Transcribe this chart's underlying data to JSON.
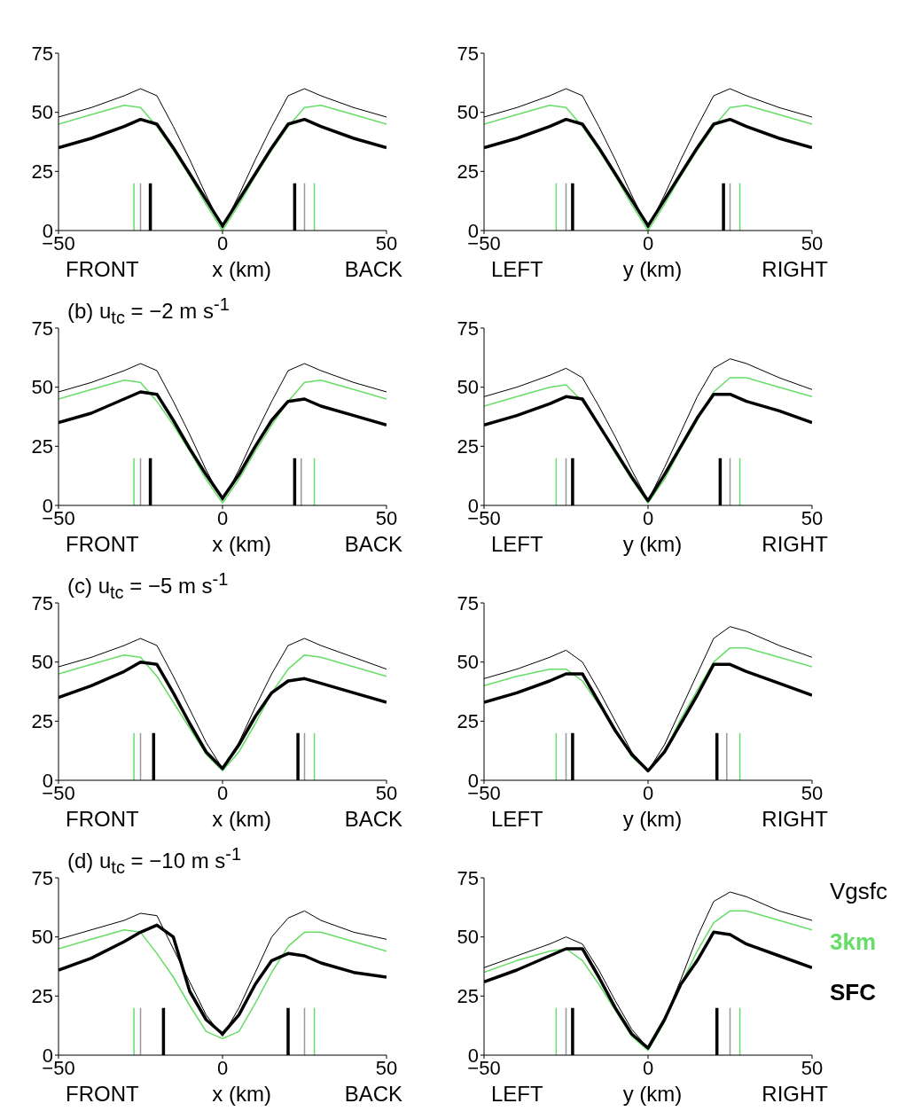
{
  "chart_data": [
    {
      "type": "line",
      "xlabel": "x (km)",
      "annotations": [
        "FRONT",
        "BACK"
      ],
      "x": [
        -50,
        -40,
        -30,
        -25,
        -20,
        -15,
        -10,
        -5,
        0,
        5,
        10,
        15,
        20,
        25,
        30,
        40,
        50
      ],
      "xlim": [
        -50,
        50
      ],
      "xticks": [
        -50,
        0,
        50
      ],
      "ylim": [
        0,
        75
      ],
      "yticks": [
        0,
        25,
        50,
        75
      ],
      "series": [
        {
          "color": "#000000",
          "values": [
            48,
            52,
            57,
            60,
            57,
            44,
            30,
            15,
            1,
            15,
            30,
            44,
            57,
            60,
            57,
            52,
            48
          ]
        },
        {
          "color": "#66dd66",
          "values": [
            45,
            49,
            53,
            52,
            44,
            34,
            23,
            11,
            0,
            11,
            23,
            34,
            44,
            52,
            53,
            49,
            45
          ]
        },
        {
          "color": "#000000",
          "values": [
            35,
            39,
            44,
            47,
            45,
            35,
            24,
            13,
            2,
            13,
            24,
            35,
            45,
            47,
            44,
            39,
            35
          ]
        },
        {
          "color": "#66dd66",
          "x": [
            -27,
            -27,
            null,
            28,
            28
          ],
          "values": [
            0,
            20,
            null,
            20,
            0
          ]
        },
        {
          "color": "#999999",
          "x": [
            -25,
            -25,
            null,
            25,
            25
          ],
          "values": [
            0,
            20,
            null,
            20,
            0
          ]
        },
        {
          "color": "#000000",
          "x": [
            -22,
            -22,
            null,
            22,
            22
          ],
          "values": [
            0,
            20,
            null,
            20,
            0
          ]
        }
      ]
    },
    {
      "type": "line",
      "xlabel": "y (km)",
      "annotations": [
        "LEFT",
        "RIGHT"
      ],
      "x": [
        -50,
        -40,
        -30,
        -25,
        -20,
        -15,
        -10,
        -5,
        0,
        5,
        10,
        15,
        20,
        25,
        30,
        40,
        50
      ],
      "xlim": [
        -50,
        50
      ],
      "xticks": [
        -50,
        0,
        50
      ],
      "ylim": [
        0,
        75
      ],
      "yticks": [
        0,
        25,
        50,
        75
      ],
      "series": [
        {
          "color": "#000000",
          "values": [
            48,
            52,
            57,
            60,
            57,
            44,
            30,
            15,
            1,
            15,
            30,
            44,
            57,
            60,
            57,
            52,
            48
          ]
        },
        {
          "color": "#66dd66",
          "values": [
            45,
            49,
            53,
            52,
            44,
            34,
            23,
            11,
            0,
            11,
            23,
            34,
            44,
            52,
            53,
            49,
            45
          ]
        },
        {
          "color": "#000000",
          "values": [
            35,
            39,
            44,
            47,
            45,
            35,
            24,
            13,
            2,
            13,
            24,
            35,
            45,
            47,
            44,
            39,
            35
          ]
        },
        {
          "color": "#66dd66",
          "x": [
            -28,
            -28,
            null,
            28,
            28
          ],
          "values": [
            0,
            20,
            null,
            20,
            0
          ]
        },
        {
          "color": "#999999",
          "x": [
            -25,
            -25,
            null,
            25,
            25
          ],
          "values": [
            0,
            20,
            null,
            20,
            0
          ]
        },
        {
          "color": "#000000",
          "x": [
            -23,
            -23,
            null,
            23,
            23
          ],
          "values": [
            0,
            20,
            null,
            20,
            0
          ]
        }
      ]
    },
    {
      "type": "line",
      "title": "(b) u$_{tc}$ = −2 m s$^{-1}$",
      "xlabel": "x (km)",
      "annotations": [
        "FRONT",
        "BACK"
      ],
      "x": [
        -50,
        -40,
        -30,
        -25,
        -20,
        -15,
        -10,
        -5,
        0,
        5,
        10,
        15,
        20,
        25,
        30,
        40,
        50
      ],
      "xlim": [
        -50,
        50
      ],
      "xticks": [
        -50,
        0,
        50
      ],
      "ylim": [
        0,
        75
      ],
      "yticks": [
        0,
        25,
        50,
        75
      ],
      "series": [
        {
          "color": "#000000",
          "values": [
            48,
            52,
            57,
            60,
            57,
            44,
            30,
            15,
            2,
            15,
            30,
            44,
            57,
            60,
            57,
            52,
            48
          ]
        },
        {
          "color": "#66dd66",
          "values": [
            45,
            49,
            53,
            52,
            44,
            34,
            23,
            11,
            1,
            11,
            23,
            34,
            44,
            52,
            53,
            49,
            45
          ]
        },
        {
          "color": "#000000",
          "values": [
            35,
            39,
            45,
            48,
            47,
            36,
            24,
            13,
            3,
            13,
            25,
            36,
            44,
            45,
            42,
            38,
            34
          ]
        },
        {
          "color": "#66dd66",
          "x": [
            -27,
            -27,
            null,
            28,
            28
          ],
          "values": [
            0,
            20,
            null,
            20,
            0
          ]
        },
        {
          "color": "#999999",
          "x": [
            -25,
            -25,
            null,
            24,
            24
          ],
          "values": [
            0,
            20,
            null,
            20,
            0
          ]
        },
        {
          "color": "#000000",
          "x": [
            -22,
            -22,
            null,
            22,
            22
          ],
          "values": [
            0,
            20,
            null,
            20,
            0
          ]
        }
      ]
    },
    {
      "type": "line",
      "xlabel": "y (km)",
      "annotations": [
        "LEFT",
        "RIGHT"
      ],
      "x": [
        -50,
        -40,
        -30,
        -25,
        -20,
        -15,
        -10,
        -5,
        0,
        5,
        10,
        15,
        20,
        25,
        30,
        40,
        50
      ],
      "xlim": [
        -50,
        50
      ],
      "xticks": [
        -50,
        0,
        50
      ],
      "ylim": [
        0,
        75
      ],
      "yticks": [
        0,
        25,
        50,
        75
      ],
      "series": [
        {
          "color": "#000000",
          "values": [
            46,
            50,
            55,
            58,
            54,
            42,
            29,
            15,
            2,
            16,
            31,
            46,
            58,
            62,
            60,
            54,
            49
          ]
        },
        {
          "color": "#66dd66",
          "values": [
            42,
            46,
            50,
            51,
            44,
            34,
            22,
            11,
            1,
            11,
            24,
            36,
            48,
            54,
            54,
            50,
            46
          ]
        },
        {
          "color": "#000000",
          "values": [
            34,
            38,
            43,
            46,
            45,
            34,
            23,
            12,
            2,
            13,
            25,
            37,
            47,
            47,
            44,
            40,
            35
          ]
        },
        {
          "color": "#66dd66",
          "x": [
            -28,
            -28,
            null,
            28,
            28
          ],
          "values": [
            0,
            20,
            null,
            20,
            0
          ]
        },
        {
          "color": "#999999",
          "x": [
            -25,
            -25,
            null,
            25,
            25
          ],
          "values": [
            0,
            20,
            null,
            20,
            0
          ]
        },
        {
          "color": "#000000",
          "x": [
            -23,
            -23,
            null,
            22,
            22
          ],
          "values": [
            0,
            20,
            null,
            20,
            0
          ]
        }
      ]
    },
    {
      "type": "line",
      "title": "(c) u$_{tc}$ = −5 m s$^{-1}$",
      "xlabel": "x (km)",
      "annotations": [
        "FRONT",
        "BACK"
      ],
      "x": [
        -50,
        -40,
        -30,
        -25,
        -20,
        -15,
        -10,
        -5,
        0,
        5,
        10,
        15,
        20,
        25,
        30,
        40,
        50
      ],
      "xlim": [
        -50,
        50
      ],
      "xticks": [
        -50,
        0,
        50
      ],
      "ylim": [
        0,
        75
      ],
      "yticks": [
        0,
        25,
        50,
        75
      ],
      "series": [
        {
          "color": "#000000",
          "values": [
            48,
            52,
            57,
            60,
            57,
            44,
            30,
            16,
            5,
            16,
            31,
            45,
            57,
            60,
            57,
            52,
            47
          ]
        },
        {
          "color": "#66dd66",
          "values": [
            45,
            49,
            53,
            52,
            44,
            33,
            22,
            11,
            4,
            12,
            24,
            37,
            47,
            53,
            52,
            48,
            44
          ]
        },
        {
          "color": "#000000",
          "values": [
            35,
            40,
            46,
            50,
            49,
            37,
            24,
            12,
            5,
            15,
            27,
            37,
            42,
            43,
            41,
            37,
            33
          ]
        },
        {
          "color": "#66dd66",
          "x": [
            -27,
            -27,
            null,
            28,
            28
          ],
          "values": [
            0,
            20,
            null,
            20,
            0
          ]
        },
        {
          "color": "#999999",
          "x": [
            -25,
            -25,
            null,
            25,
            25
          ],
          "values": [
            0,
            20,
            null,
            20,
            0
          ]
        },
        {
          "color": "#000000",
          "x": [
            -21,
            -21,
            null,
            23,
            23
          ],
          "values": [
            0,
            20,
            null,
            20,
            0
          ]
        }
      ]
    },
    {
      "type": "line",
      "xlabel": "y (km)",
      "annotations": [
        "LEFT",
        "RIGHT"
      ],
      "x": [
        -50,
        -40,
        -30,
        -25,
        -20,
        -15,
        -10,
        -5,
        0,
        5,
        10,
        15,
        20,
        25,
        30,
        40,
        50
      ],
      "xlim": [
        -50,
        50
      ],
      "xticks": [
        -50,
        0,
        50
      ],
      "ylim": [
        0,
        75
      ],
      "yticks": [
        0,
        25,
        50,
        75
      ],
      "series": [
        {
          "color": "#000000",
          "values": [
            43,
            47,
            52,
            55,
            50,
            38,
            25,
            12,
            4,
            15,
            30,
            45,
            60,
            65,
            63,
            57,
            52
          ]
        },
        {
          "color": "#66dd66",
          "values": [
            40,
            44,
            47,
            47,
            42,
            32,
            22,
            10,
            4,
            12,
            26,
            38,
            50,
            56,
            56,
            52,
            48
          ]
        },
        {
          "color": "#000000",
          "values": [
            33,
            37,
            42,
            45,
            45,
            33,
            21,
            11,
            4,
            12,
            24,
            36,
            49,
            49,
            46,
            41,
            36
          ]
        },
        {
          "color": "#66dd66",
          "x": [
            -28,
            -28,
            null,
            28,
            28
          ],
          "values": [
            0,
            20,
            null,
            20,
            0
          ]
        },
        {
          "color": "#999999",
          "x": [
            -25,
            -25,
            null,
            24,
            24
          ],
          "values": [
            0,
            20,
            null,
            20,
            0
          ]
        },
        {
          "color": "#000000",
          "x": [
            -23,
            -23,
            null,
            21,
            21
          ],
          "values": [
            0,
            20,
            null,
            20,
            0
          ]
        }
      ]
    },
    {
      "type": "line",
      "title": "(d) u$_{tc}$ = −10 m s$^{-1}$",
      "xlabel": "x (km)",
      "annotations": [
        "FRONT",
        "BACK"
      ],
      "x": [
        -50,
        -40,
        -30,
        -25,
        -20,
        -15,
        -10,
        -5,
        0,
        5,
        10,
        15,
        20,
        25,
        30,
        40,
        50
      ],
      "xlim": [
        -50,
        50
      ],
      "xticks": [
        -50,
        0,
        50
      ],
      "ylim": [
        0,
        75
      ],
      "yticks": [
        0,
        25,
        50,
        75
      ],
      "series": [
        {
          "color": "#000000",
          "values": [
            49,
            53,
            57,
            60,
            59,
            45,
            31,
            17,
            8,
            20,
            35,
            50,
            58,
            61,
            57,
            52,
            49
          ]
        },
        {
          "color": "#66dd66",
          "values": [
            45,
            49,
            53,
            52,
            43,
            33,
            21,
            10,
            7,
            10,
            22,
            35,
            46,
            52,
            52,
            48,
            44
          ]
        },
        {
          "color": "#000000",
          "values": [
            36,
            41,
            48,
            52,
            55,
            50,
            27,
            15,
            9,
            17,
            30,
            40,
            43,
            42,
            39,
            35,
            33
          ]
        },
        {
          "color": "#66dd66",
          "x": [
            -27,
            -27,
            null,
            28,
            28
          ],
          "values": [
            0,
            20,
            null,
            20,
            0
          ]
        },
        {
          "color": "#999999",
          "x": [
            -25,
            -25,
            null,
            25,
            25
          ],
          "values": [
            0,
            20,
            null,
            20,
            0
          ]
        },
        {
          "color": "#000000",
          "x": [
            -18,
            -18,
            null,
            20,
            20
          ],
          "values": [
            0,
            20,
            null,
            20,
            0
          ]
        }
      ]
    },
    {
      "type": "line",
      "xlabel": "y (km)",
      "annotations": [
        "LEFT",
        "RIGHT"
      ],
      "legend": "right",
      "x": [
        -50,
        -40,
        -30,
        -25,
        -20,
        -15,
        -10,
        -5,
        0,
        5,
        10,
        15,
        20,
        25,
        30,
        40,
        50
      ],
      "xlim": [
        -50,
        50
      ],
      "xticks": [
        -50,
        0,
        50
      ],
      "ylim": [
        0,
        75
      ],
      "yticks": [
        0,
        25,
        50,
        75
      ],
      "series": [
        {
          "name": "Vgsfc",
          "color": "#000000",
          "values": [
            37,
            42,
            47,
            50,
            47,
            36,
            23,
            11,
            3,
            15,
            32,
            50,
            65,
            69,
            67,
            61,
            57
          ]
        },
        {
          "name": "3km",
          "color": "#66dd66",
          "values": [
            35,
            40,
            44,
            45,
            40,
            30,
            19,
            8,
            2,
            14,
            30,
            44,
            56,
            61,
            61,
            57,
            53
          ]
        },
        {
          "name": "SFC",
          "color": "#000000",
          "values": [
            31,
            36,
            42,
            45,
            45,
            33,
            20,
            9,
            3,
            15,
            30,
            40,
            52,
            51,
            47,
            42,
            37
          ]
        },
        {
          "color": "#66dd66",
          "x": [
            -28,
            -28,
            null,
            28,
            28
          ],
          "values": [
            0,
            20,
            null,
            20,
            0
          ]
        },
        {
          "color": "#999999",
          "x": [
            -25,
            -25,
            null,
            25,
            25
          ],
          "values": [
            0,
            20,
            null,
            20,
            0
          ]
        },
        {
          "color": "#000000",
          "x": [
            -23,
            -23,
            null,
            21,
            21
          ],
          "values": [
            0,
            20,
            null,
            20,
            0
          ]
        }
      ]
    }
  ]
}
